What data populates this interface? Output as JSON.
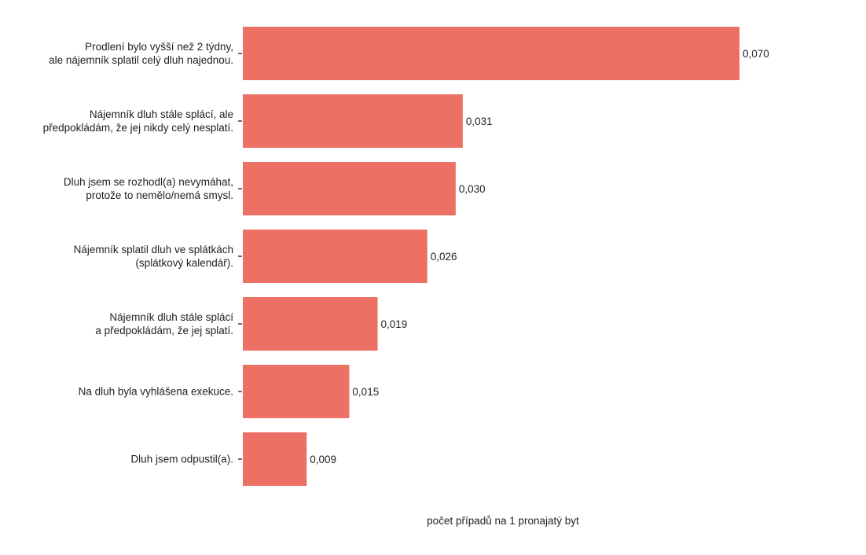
{
  "chart_data": {
    "type": "bar",
    "orientation": "horizontal",
    "categories": [
      [
        "Prodlení bylo vyšší než 2 týdny,",
        "ale nájemník splatil celý dluh najednou."
      ],
      [
        "Nájemník dluh stále splácí, ale",
        "předpokládám, že jej nikdy celý nesplatí."
      ],
      [
        "Dluh jsem se rozhodl(a) nevymáhat,",
        "protože to nemělo/nemá smysl."
      ],
      [
        "Nájemník splatil dluh ve splátkách",
        "(splátkový kalendář)."
      ],
      [
        "Nájemník dluh stále splácí",
        "a předpokládám, že jej splatí."
      ],
      [
        "Na dluh byla vyhlášena exekuce."
      ],
      [
        "Dluh jsem odpustil(a)."
      ]
    ],
    "values": [
      0.07,
      0.031,
      0.03,
      0.026,
      0.019,
      0.015,
      0.009
    ],
    "value_labels": [
      "0,070",
      "0,031",
      "0,030",
      "0,026",
      "0,019",
      "0,015",
      "0,009"
    ],
    "xlabel": "počet případů na 1 pronajatý byt",
    "ylabel": "",
    "title": "",
    "xlim": [
      0,
      0.07
    ],
    "grid": false,
    "bar_color": "#ec7063"
  }
}
